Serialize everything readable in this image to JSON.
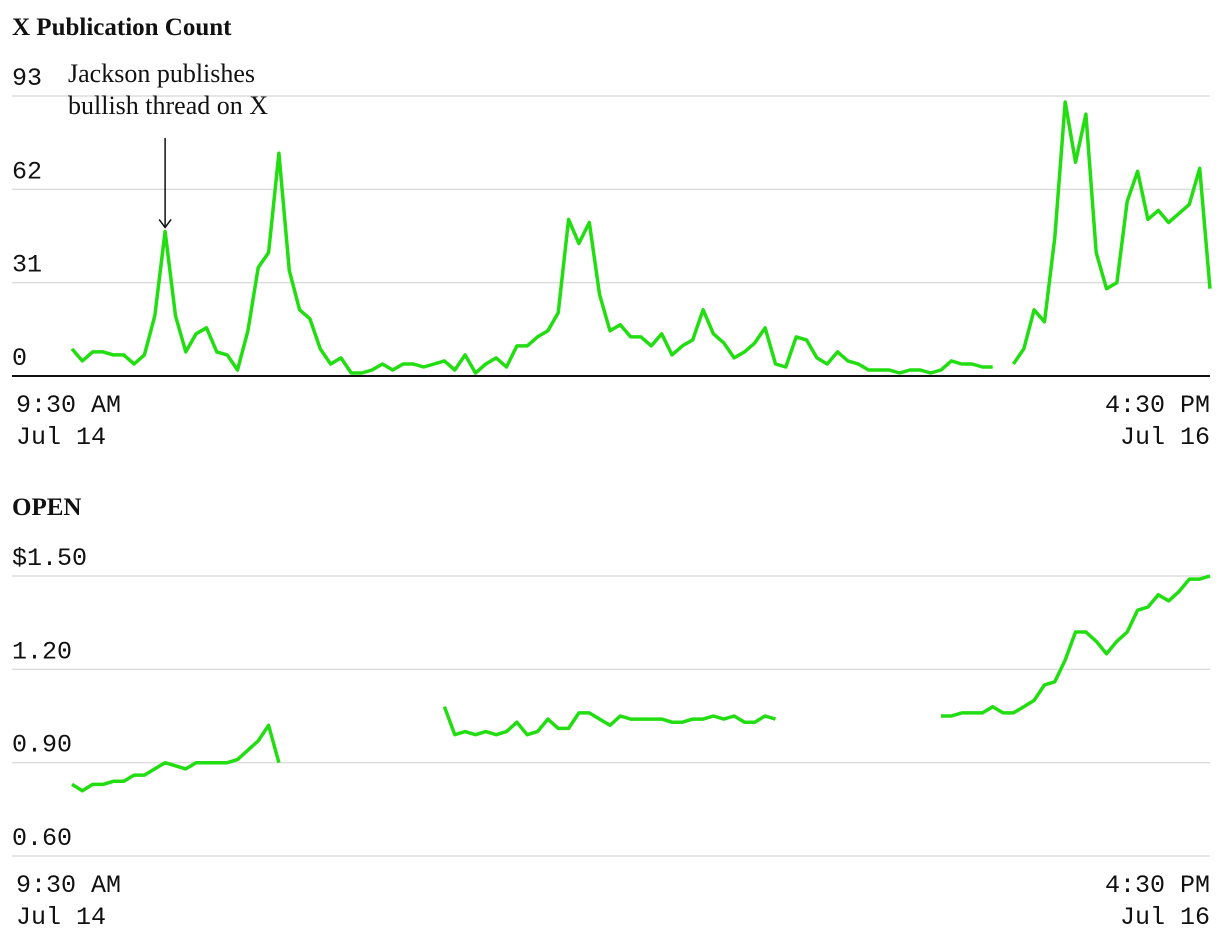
{
  "chart_data": [
    {
      "type": "line",
      "title": "X Publication Count",
      "annotation": {
        "text": "Jackson publishes\nbullish thread on X",
        "x": 9
      },
      "categories": [
        "9:30 AM\nJul 14",
        null,
        null,
        null,
        null,
        null,
        null,
        null,
        null,
        null,
        null,
        null,
        null,
        null,
        null,
        null,
        null,
        null,
        null,
        null,
        null,
        null,
        null,
        null,
        null,
        null,
        null,
        null,
        null,
        null,
        null,
        null,
        null,
        null,
        null,
        null,
        null,
        null,
        null,
        null,
        null,
        null,
        null,
        null,
        null,
        null,
        null,
        null,
        null,
        null,
        null,
        null,
        null,
        null,
        null,
        null,
        null,
        null,
        null,
        null,
        null,
        null,
        null,
        null,
        null,
        null,
        null,
        null,
        null,
        null,
        null,
        null,
        null,
        null,
        null,
        null,
        null,
        null,
        null,
        null,
        null,
        null,
        null,
        null,
        null,
        null,
        null,
        null,
        null,
        null,
        null,
        null,
        null,
        null,
        null,
        null,
        null,
        null,
        null,
        null,
        null,
        null,
        null,
        null,
        null,
        null,
        null,
        null,
        null,
        null,
        "4:30 PM\nJul 16"
      ],
      "values": [
        9,
        5,
        8,
        8,
        7,
        7,
        4,
        7,
        20,
        48,
        20,
        8,
        14,
        16,
        8,
        7,
        2,
        15,
        36,
        41,
        74,
        35,
        22,
        19,
        9,
        4,
        6,
        1,
        1,
        2,
        4,
        2,
        4,
        4,
        3,
        4,
        5,
        2,
        7,
        1,
        4,
        6,
        3,
        10,
        10,
        13,
        15,
        21,
        52,
        44,
        51,
        27,
        15,
        17,
        13,
        13,
        10,
        14,
        7,
        10,
        12,
        22,
        14,
        11,
        6,
        8,
        11,
        16,
        4,
        3,
        13,
        12,
        6,
        4,
        8,
        5,
        4,
        2,
        2,
        2,
        1,
        2,
        2,
        1,
        2,
        5,
        4,
        4,
        3,
        3,
        null,
        4,
        9,
        22,
        18,
        46,
        91,
        71,
        87,
        41,
        29,
        31,
        58,
        68,
        52,
        55,
        51,
        54,
        57,
        69,
        29
      ],
      "color": "#22dd11",
      "ylim": [
        0,
        93
      ],
      "yticks": [
        0,
        31,
        62,
        93
      ],
      "grid": true,
      "baseline": true
    },
    {
      "type": "line",
      "title": "OPEN",
      "categories": [
        "9:30 AM\nJul 14",
        null,
        null,
        null,
        null,
        null,
        null,
        null,
        null,
        null,
        null,
        null,
        null,
        null,
        null,
        null,
        null,
        null,
        null,
        null,
        null,
        null,
        null,
        null,
        null,
        null,
        null,
        null,
        null,
        null,
        null,
        null,
        null,
        null,
        null,
        null,
        null,
        null,
        null,
        null,
        null,
        null,
        null,
        null,
        null,
        null,
        null,
        null,
        null,
        null,
        null,
        null,
        null,
        null,
        null,
        null,
        null,
        null,
        null,
        null,
        null,
        null,
        null,
        null,
        null,
        null,
        null,
        null,
        null,
        null,
        null,
        null,
        null,
        null,
        null,
        null,
        null,
        null,
        null,
        null,
        null,
        null,
        null,
        null,
        null,
        null,
        null,
        null,
        null,
        null,
        null,
        null,
        null,
        null,
        null,
        null,
        null,
        null,
        null,
        null,
        null,
        null,
        null,
        null,
        null,
        null,
        null,
        null,
        null,
        null,
        "4:30 PM\nJul 16"
      ],
      "values": [
        0.83,
        0.81,
        0.83,
        0.83,
        0.84,
        0.84,
        0.86,
        0.86,
        0.88,
        0.9,
        0.89,
        0.88,
        0.9,
        0.9,
        0.9,
        0.9,
        0.91,
        0.94,
        0.97,
        1.02,
        0.9,
        null,
        null,
        null,
        null,
        null,
        null,
        null,
        null,
        null,
        null,
        null,
        null,
        null,
        null,
        null,
        1.08,
        0.99,
        1.0,
        0.99,
        1.0,
        0.99,
        1.0,
        1.03,
        0.99,
        1.0,
        1.04,
        1.01,
        1.01,
        1.06,
        1.06,
        1.04,
        1.02,
        1.05,
        1.04,
        1.04,
        1.04,
        1.04,
        1.03,
        1.03,
        1.04,
        1.04,
        1.05,
        1.04,
        1.05,
        1.03,
        1.03,
        1.05,
        1.04,
        null,
        null,
        null,
        null,
        null,
        null,
        null,
        null,
        null,
        null,
        null,
        null,
        null,
        null,
        null,
        1.05,
        1.05,
        1.06,
        1.06,
        1.06,
        1.08,
        1.06,
        1.06,
        1.08,
        1.1,
        1.15,
        1.16,
        1.23,
        1.32,
        1.32,
        1.29,
        1.25,
        1.29,
        1.32,
        1.39,
        1.4,
        1.44,
        1.42,
        1.45,
        1.49,
        1.49,
        1.5
      ],
      "color": "#22dd11",
      "ylim": [
        0.6,
        1.5
      ],
      "yticks": [
        {
          "value": 0.6,
          "label": "0.60"
        },
        {
          "value": 0.9,
          "label": "0.90"
        },
        {
          "value": 1.2,
          "label": "1.20"
        },
        {
          "value": 1.5,
          "label": "$1.50"
        }
      ],
      "grid": true,
      "baseline": false
    }
  ]
}
